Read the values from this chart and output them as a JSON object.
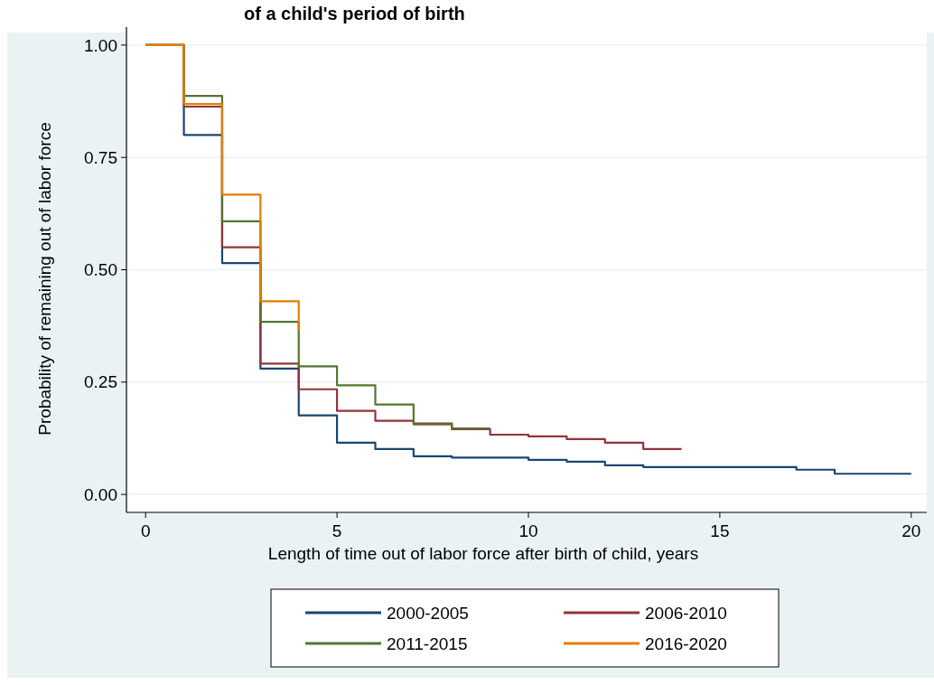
{
  "chart_data": {
    "type": "step",
    "title": "of a child's period of birth",
    "xlabel": "Length of time out of labor force after birth of child, years",
    "ylabel": "Probability of remaining out of labor force",
    "xlim": [
      -0.5,
      20.5
    ],
    "ylim": [
      -0.04,
      1.04
    ],
    "xticks": [
      0,
      5,
      10,
      15,
      20
    ],
    "yticks": [
      {
        "value": 0,
        "label": "0.00"
      },
      {
        "value": 0.25,
        "label": "0.25"
      },
      {
        "value": 0.5,
        "label": "0.50"
      },
      {
        "value": 0.75,
        "label": "0.75"
      },
      {
        "value": 1,
        "label": "1.00"
      }
    ],
    "grid": "y",
    "legend": "bottom",
    "series": [
      {
        "name": "2000-2005",
        "color": "#1a476f",
        "x": [
          0,
          1,
          2,
          3,
          4,
          5,
          6,
          7,
          8,
          10,
          11,
          12,
          13,
          17,
          18,
          20
        ],
        "values": [
          1,
          0.8,
          0.515,
          0.28,
          0.176,
          0.115,
          0.101,
          0.085,
          0.082,
          0.077,
          0.073,
          0.065,
          0.061,
          0.055,
          0.046,
          0.046
        ]
      },
      {
        "name": "2006-2010",
        "color": "#90353b",
        "x": [
          0,
          1,
          2,
          3,
          4,
          5,
          6,
          7,
          8,
          9,
          10,
          11,
          12,
          13,
          14
        ],
        "values": [
          1,
          0.863,
          0.55,
          0.291,
          0.234,
          0.186,
          0.164,
          0.158,
          0.145,
          0.133,
          0.129,
          0.123,
          0.115,
          0.101,
          0.101
        ]
      },
      {
        "name": "2011-2015",
        "color": "#55752f",
        "x": [
          0,
          1,
          2,
          3,
          4,
          5,
          6,
          7,
          8,
          9
        ],
        "values": [
          1,
          0.887,
          0.608,
          0.384,
          0.285,
          0.243,
          0.2,
          0.156,
          0.147,
          0.147
        ]
      },
      {
        "name": "2016-2020",
        "color": "#e37e00",
        "x": [
          0,
          1,
          2,
          3,
          4
        ],
        "values": [
          1,
          0.869,
          0.667,
          0.43,
          0.365
        ]
      }
    ]
  }
}
